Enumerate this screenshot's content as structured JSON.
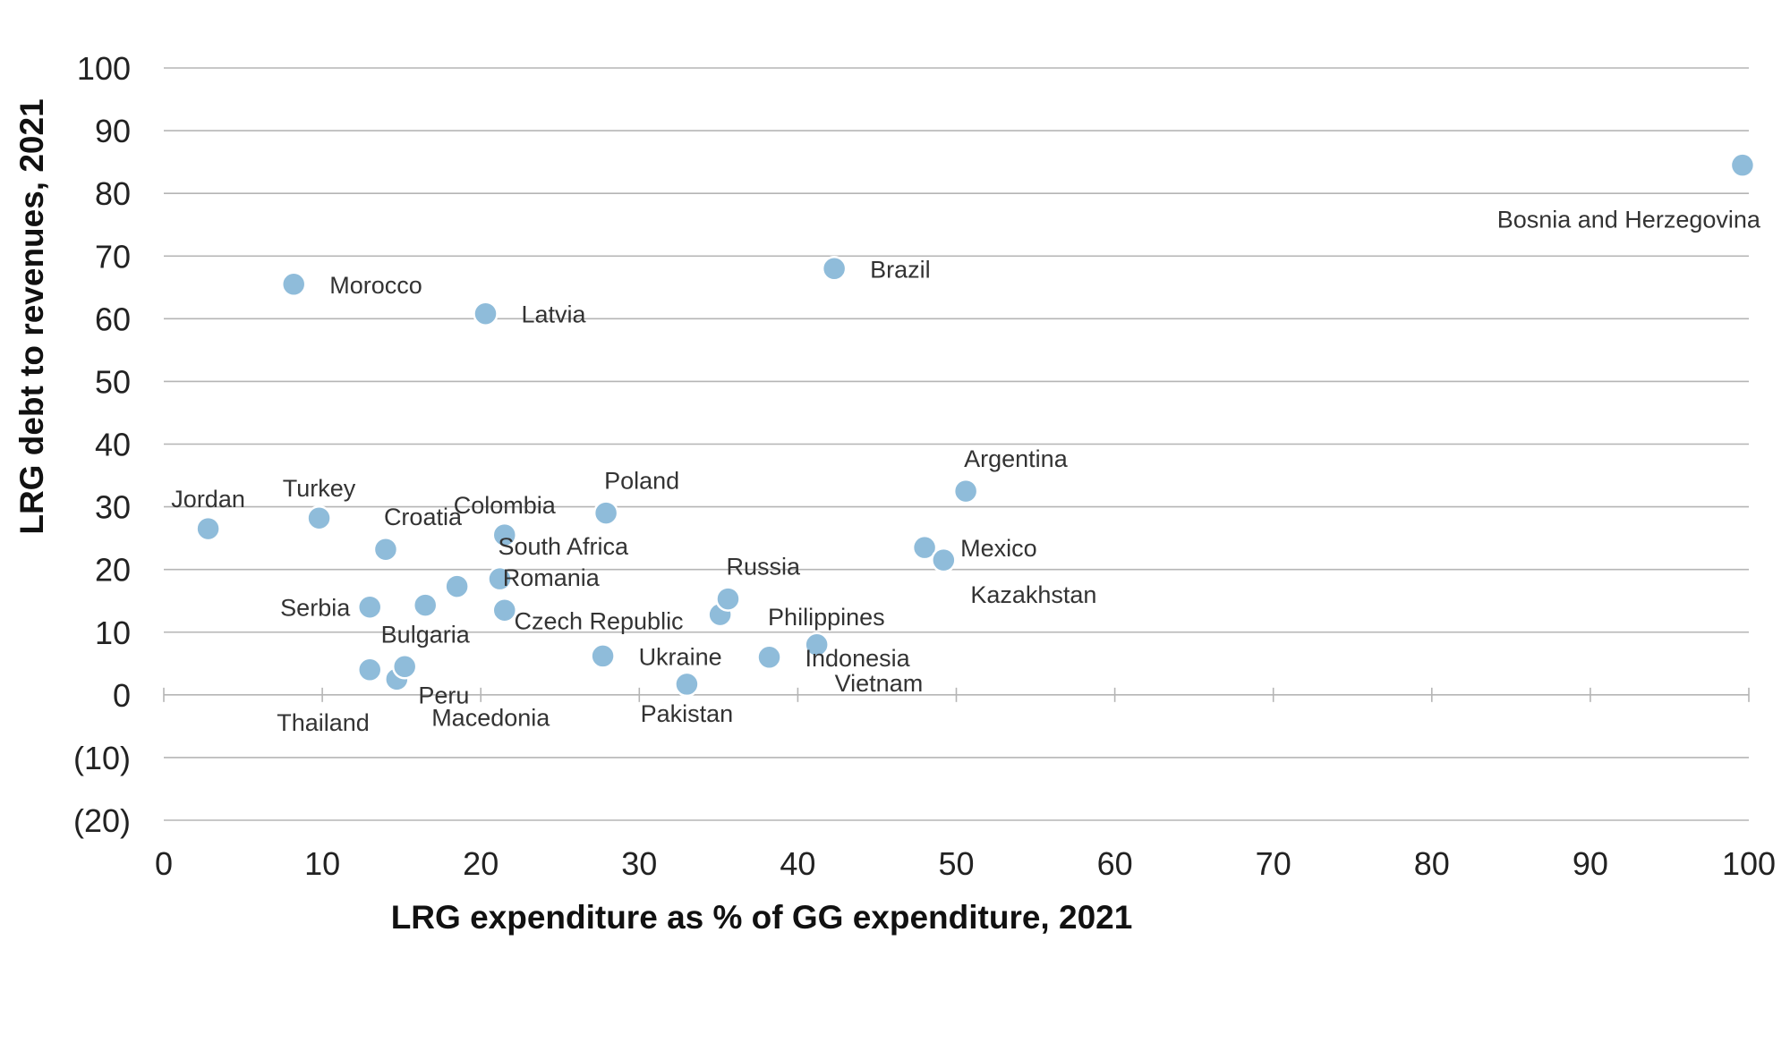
{
  "chart_data": {
    "type": "scatter",
    "xlabel": "LRG expenditure as % of GG expenditure, 2021",
    "ylabel": "LRG debt to revenues, 2021",
    "xlim": [
      0,
      100
    ],
    "ylim": [
      -20,
      100
    ],
    "x_ticks": [
      0,
      10,
      20,
      30,
      40,
      50,
      60,
      70,
      80,
      90,
      100
    ],
    "x_tick_labels": [
      "0",
      "10",
      "20",
      "30",
      "40",
      "50",
      "60",
      "70",
      "80",
      "90",
      "100"
    ],
    "y_ticks": [
      -20,
      -10,
      0,
      10,
      20,
      30,
      40,
      50,
      60,
      70,
      80,
      90,
      100
    ],
    "y_tick_labels": [
      "(20)",
      "(10)",
      "0",
      "10",
      "20",
      "30",
      "40",
      "50",
      "60",
      "70",
      "80",
      "90",
      "100"
    ],
    "grid": "horizontal",
    "marker_color": "#8fbcda",
    "points": [
      {
        "label": "Jordan",
        "x": 2.8,
        "y": 26.5,
        "label_pos": "above"
      },
      {
        "label": "Morocco",
        "x": 8.2,
        "y": 65.5,
        "label_pos": "right"
      },
      {
        "label": "Turkey",
        "x": 9.8,
        "y": 28.2,
        "label_pos": "above"
      },
      {
        "label": "Serbia",
        "x": 13.0,
        "y": 14.0,
        "label_pos": "left"
      },
      {
        "label": "Thailand",
        "x": 13.0,
        "y": 4.0,
        "label_pos": "below-left"
      },
      {
        "label": "Croatia",
        "x": 14.0,
        "y": 23.2,
        "label_pos": "above-right"
      },
      {
        "label": "Peru",
        "x": 14.7,
        "y": 2.5,
        "label_pos": "right-low"
      },
      {
        "label": "Macedonia",
        "x": 15.2,
        "y": 4.5,
        "label_pos": "below-right"
      },
      {
        "label": "Bulgaria",
        "x": 16.5,
        "y": 14.3,
        "label_pos": "below"
      },
      {
        "label": "",
        "x": 18.5,
        "y": 17.3,
        "label_pos": "none"
      },
      {
        "label": "Latvia",
        "x": 20.3,
        "y": 60.8,
        "label_pos": "right"
      },
      {
        "label": "South Africa",
        "x": 21.2,
        "y": 18.5,
        "label_pos": "above-right"
      },
      {
        "label": "Colombia",
        "x": 21.5,
        "y": 25.5,
        "label_pos": "above"
      },
      {
        "label": "Romania",
        "x": 21.5,
        "y": 13.5,
        "label_pos": "above-right"
      },
      {
        "label": "Czech Republic",
        "x": 27.7,
        "y": 6.2,
        "label_pos": "above-left"
      },
      {
        "label": "Ukraine",
        "x": 27.7,
        "y": 6.2,
        "label_pos": "right"
      },
      {
        "label": "Poland",
        "x": 27.9,
        "y": 29.0,
        "label_pos": "above-right"
      },
      {
        "label": "Pakistan",
        "x": 33.0,
        "y": 1.7,
        "label_pos": "below"
      },
      {
        "label": "",
        "x": 35.1,
        "y": 12.8,
        "label_pos": "none"
      },
      {
        "label": "Russia",
        "x": 35.6,
        "y": 15.3,
        "label_pos": "above-right"
      },
      {
        "label": "Indonesia",
        "x": 38.2,
        "y": 6.0,
        "label_pos": "right"
      },
      {
        "label": "Philippines",
        "x": 41.2,
        "y": 8.0,
        "label_pos": "above-left"
      },
      {
        "label": "Vietnam",
        "x": 41.2,
        "y": 8.0,
        "label_pos": "below-right"
      },
      {
        "label": "Brazil",
        "x": 42.3,
        "y": 68.0,
        "label_pos": "right"
      },
      {
        "label": "Mexico",
        "x": 48.0,
        "y": 23.5,
        "label_pos": "right"
      },
      {
        "label": "Kazakhstan",
        "x": 49.2,
        "y": 21.5,
        "label_pos": "below-right"
      },
      {
        "label": "Argentina",
        "x": 50.6,
        "y": 32.5,
        "label_pos": "above-right"
      },
      {
        "label": "Bosnia and Herzegovina",
        "x": 99.6,
        "y": 84.5,
        "label_pos": "below-left"
      }
    ]
  }
}
